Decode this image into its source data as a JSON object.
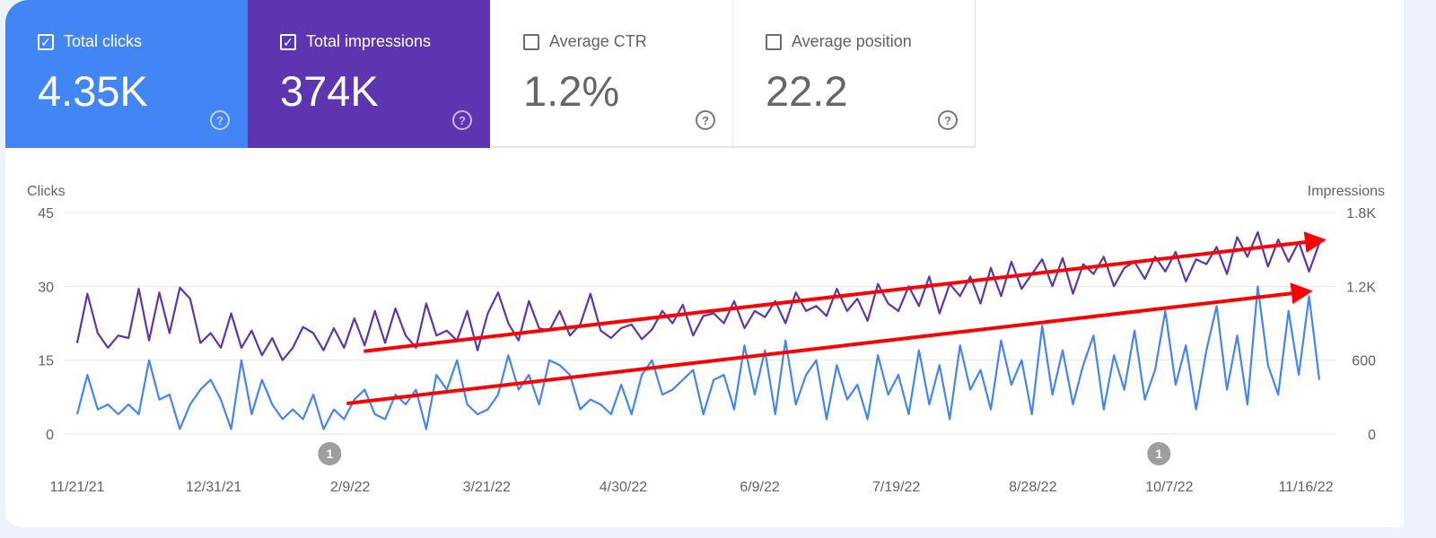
{
  "metrics": [
    {
      "label": "Total clicks",
      "value": "4.35K",
      "checked": true,
      "color": "#4285f4"
    },
    {
      "label": "Total impressions",
      "value": "374K",
      "checked": true,
      "color": "#5e35b1"
    },
    {
      "label": "Average CTR",
      "value": "1.2%",
      "checked": false
    },
    {
      "label": "Average position",
      "value": "22.2",
      "checked": false
    }
  ],
  "icons": {
    "checked": "checkbox-checked-icon",
    "unchecked": "checkbox-empty-icon",
    "help": "help-circle-icon"
  },
  "chart_data": {
    "type": "line",
    "xlabel": "",
    "ylabel_left": "Clicks",
    "ylabel_right": "Impressions",
    "x_range": [
      "2021-11-21",
      "2022-11-20"
    ],
    "x_ticks": [
      "11/21/21",
      "12/31/21",
      "2/9/22",
      "3/21/22",
      "4/30/22",
      "6/9/22",
      "7/19/22",
      "8/28/22",
      "10/7/22",
      "11/16/22"
    ],
    "y_left_ticks": [
      "0",
      "15",
      "30",
      "45"
    ],
    "y_left_range": [
      0,
      45
    ],
    "y_right_ticks": [
      "0",
      "600",
      "1.2K",
      "1.8K"
    ],
    "y_right_range": [
      0,
      1800
    ],
    "grid": true,
    "series": [
      {
        "name": "Clicks",
        "axis": "left",
        "color": "#4285f4",
        "values": [
          4,
          12,
          5,
          6,
          4,
          6,
          4,
          15,
          7,
          8,
          1,
          6,
          9,
          11,
          7,
          1,
          15,
          4,
          11,
          6,
          3,
          5,
          3,
          8,
          1,
          5,
          3,
          7,
          9,
          4,
          3,
          8,
          6,
          9,
          1,
          12,
          9,
          15,
          6,
          4,
          5,
          8,
          16,
          9,
          12,
          6,
          15,
          14,
          12,
          5,
          7,
          6,
          4,
          10,
          4,
          12,
          15,
          8,
          9,
          11,
          13,
          4,
          11,
          12,
          5,
          18,
          8,
          17,
          4,
          19,
          6,
          12,
          15,
          3,
          14,
          7,
          10,
          3,
          16,
          8,
          12,
          4,
          17,
          6,
          14,
          3,
          18,
          9,
          13,
          5,
          19,
          10,
          15,
          4,
          22,
          8,
          17,
          6,
          14,
          20,
          5,
          16,
          9,
          21,
          7,
          13,
          25,
          10,
          18,
          5,
          17,
          26,
          9,
          20,
          6,
          30,
          14,
          8,
          25,
          12,
          28,
          11
        ]
      },
      {
        "name": "Impressions",
        "axis": "right",
        "color": "#5e35b1",
        "values": [
          740,
          1140,
          820,
          700,
          800,
          780,
          1180,
          760,
          1150,
          820,
          1190,
          1100,
          740,
          820,
          700,
          980,
          700,
          840,
          640,
          780,
          600,
          700,
          870,
          820,
          680,
          860,
          700,
          940,
          720,
          1000,
          740,
          1020,
          800,
          700,
          1060,
          800,
          840,
          760,
          1000,
          680,
          980,
          1150,
          900,
          760,
          1080,
          860,
          840,
          1000,
          800,
          890,
          1140,
          840,
          780,
          860,
          890,
          770,
          850,
          1000,
          900,
          1050,
          800,
          960,
          980,
          900,
          1080,
          860,
          1000,
          950,
          1080,
          900,
          1150,
          1000,
          1040,
          960,
          1180,
          1000,
          1100,
          920,
          1220,
          1060,
          1000,
          1200,
          1040,
          1280,
          980,
          1220,
          1120,
          1280,
          1060,
          1350,
          1120,
          1400,
          1180,
          1300,
          1420,
          1200,
          1430,
          1140,
          1380,
          1300,
          1440,
          1200,
          1350,
          1400,
          1260,
          1440,
          1320,
          1480,
          1240,
          1420,
          1380,
          1520,
          1300,
          1600,
          1440,
          1640,
          1360,
          1580,
          1400,
          1560,
          1320,
          1550
        ]
      }
    ],
    "annotations": [
      {
        "date": "2022-02-03",
        "label": "1"
      },
      {
        "date": "2022-10-04",
        "label": "1"
      }
    ],
    "trend_arrows": [
      {
        "color": "#ff0000",
        "axis": "left",
        "from": [
          "2022-02-13",
          16.8
        ],
        "to": [
          "2022-11-20",
          39.3
        ]
      },
      {
        "color": "#ff0000",
        "axis": "left",
        "from": [
          "2022-02-08",
          6.2
        ],
        "to": [
          "2022-11-16",
          28.9
        ]
      }
    ]
  }
}
